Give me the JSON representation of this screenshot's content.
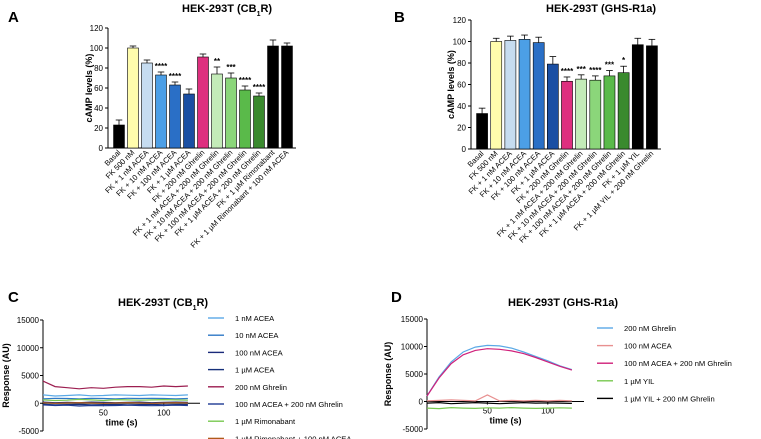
{
  "chart_data": [
    {
      "type": "bar",
      "panel": "A",
      "title": "HEK-293T (CB",
      "title_sub": "1",
      "title_end": "R)",
      "ylabel": "cAMP levels (%)",
      "ylim": [
        0,
        120
      ],
      "yticks": [
        "0",
        "20",
        "40",
        "60",
        "80",
        "100",
        "120"
      ],
      "categories": [
        "Basal",
        "FK 500 nM",
        "FK + 1 nM ACEA",
        "FK + 10 nM ACEA",
        "FK + 100 nM ACEA",
        "FK + 1 µM ACEA",
        "FK + 200 nM Ghrelin",
        "FK + 1 nM ACEA + 200 nM Ghrelin",
        "FK + 10 nM ACEA + 200 nM Ghrelin",
        "FK + 100 nM ACEA + 200 nM Ghrelin",
        "FK + 1 µM ACEA + 200 nM Ghrelin",
        "FK + 1 µM Rimonabant",
        "FK + 1 µM Rimonabant + 100 nM ACEA"
      ],
      "values": [
        23,
        100,
        85,
        73,
        63,
        54,
        91,
        74,
        70,
        58,
        52,
        102,
        102
      ],
      "errors": [
        5,
        2,
        3,
        3,
        3,
        5,
        3,
        7,
        5,
        4,
        3,
        6,
        3
      ],
      "colors": [
        "#000000",
        "#fffcad",
        "#c6dcf0",
        "#4c9fe6",
        "#2a6fc6",
        "#1a4fa3",
        "#de2f7f",
        "#c3ebb8",
        "#8bd67a",
        "#5aba4a",
        "#3a8a2e",
        "#000000",
        "#000000"
      ],
      "significance": [
        "",
        "",
        "",
        "****",
        "****",
        "",
        "",
        "**",
        "***",
        "****",
        "****",
        "",
        ""
      ]
    },
    {
      "type": "bar",
      "panel": "B",
      "title": "HEK-293T (GHS-R1a)",
      "ylabel": "cAMP levels (%)",
      "ylim": [
        0,
        120
      ],
      "yticks": [
        "0",
        "20",
        "40",
        "60",
        "80",
        "100",
        "120"
      ],
      "categories": [
        "Basal",
        "FK 500 nM",
        "FK + 1 nM ACEA",
        "FK + 10 nM ACEA",
        "FK + 100 nM ACEA",
        "FK + 1 µM ACEA",
        "FK + 200 nM Ghrelin",
        "FK + 1 nM ACEA + 200 nM Ghrelin",
        "FK + 10 nM ACEA + 200 nM Ghrelin",
        "FK + 100 nM ACEA + 200 nM Ghrelin",
        "FK + 1 µM ACEA + 200 nM Ghrelin",
        "FK + 1 µM YIL",
        "FK + 1 µM YIL + 200 nM Ghrelin"
      ],
      "values": [
        33,
        100,
        101,
        102,
        99,
        79,
        63,
        65,
        64,
        68,
        71,
        97,
        96
      ],
      "errors": [
        5,
        3,
        4,
        4,
        5,
        7,
        4,
        4,
        4,
        5,
        6,
        6,
        6
      ],
      "colors": [
        "#000000",
        "#fffcad",
        "#c6dcf0",
        "#4c9fe6",
        "#2a6fc6",
        "#1a4fa3",
        "#de2f7f",
        "#c3ebb8",
        "#8bd67a",
        "#5aba4a",
        "#3a8a2e",
        "#000000",
        "#000000"
      ],
      "significance": [
        "",
        "",
        "",
        "",
        "",
        "",
        "****",
        "***",
        "****",
        "***",
        "*",
        "",
        ""
      ]
    },
    {
      "type": "line",
      "panel": "C",
      "title": "HEK-293T (CB",
      "title_sub": "1",
      "title_end": "R)",
      "xlabel": "time (s)",
      "ylabel": "Response (AU)",
      "xlim": [
        0,
        130
      ],
      "ylim": [
        -5000,
        15000
      ],
      "xticks": [
        "50",
        "100"
      ],
      "yticks": [
        "-5000",
        "0",
        "5000",
        "10000",
        "15000"
      ],
      "x": [
        0,
        10,
        20,
        30,
        40,
        50,
        60,
        70,
        80,
        90,
        100,
        110,
        120
      ],
      "series": [
        {
          "name": "1 nM ACEA",
          "color": "#5aa9e6",
          "values": [
            1500,
            1300,
            1400,
            1500,
            1350,
            1400,
            1500,
            1450,
            1400,
            1500,
            1450,
            1400,
            1500
          ]
        },
        {
          "name": "10 nM ACEA",
          "color": "#2f78c6",
          "values": [
            800,
            900,
            850,
            800,
            900,
            850,
            800,
            900,
            850,
            900,
            850,
            800,
            850
          ]
        },
        {
          "name": "100 nM ACEA",
          "color": "#1a2a7a",
          "values": [
            200,
            100,
            150,
            100,
            200,
            150,
            100,
            150,
            200,
            100,
            150,
            200,
            150
          ]
        },
        {
          "name": "1 µM ACEA",
          "color": "#16307a",
          "values": [
            -200,
            -300,
            -250,
            -200,
            -300,
            -250,
            -200,
            -300,
            -250,
            -200,
            -300,
            -250,
            -200
          ]
        },
        {
          "name": "200 nM Ghrelin",
          "color": "#9c1e50",
          "values": [
            4000,
            3000,
            2800,
            2600,
            2800,
            2700,
            2900,
            3000,
            3000,
            2900,
            3100,
            3000,
            3100
          ]
        },
        {
          "name": "100 nM ACEA + 200 nM Ghrelin",
          "color": "#1f3a93",
          "values": [
            -300,
            -400,
            -350,
            -500,
            -400,
            -450,
            -400,
            -350,
            -400,
            -450,
            -400,
            -350,
            -400
          ]
        },
        {
          "name": "1 µM Rimonabant",
          "color": "#78c850",
          "values": [
            600,
            500,
            550,
            700,
            600,
            500,
            650,
            600,
            550,
            600,
            650,
            600,
            550
          ]
        },
        {
          "name": "1 µM Rimonabant + 100 nM ACEA",
          "color": "#b05a1a",
          "values": [
            100,
            0,
            50,
            100,
            50,
            0,
            50,
            100,
            50,
            0,
            50,
            100,
            50
          ]
        }
      ]
    },
    {
      "type": "line",
      "panel": "D",
      "title": "HEK-293T (GHS-R1a)",
      "xlabel": "time (s)",
      "ylabel": "Response (AU)",
      "xlim": [
        0,
        130
      ],
      "ylim": [
        -5000,
        15000
      ],
      "xticks": [
        "50",
        "100"
      ],
      "yticks": [
        "-5000",
        "0",
        "5000",
        "10000",
        "15000"
      ],
      "x": [
        0,
        10,
        20,
        30,
        40,
        50,
        60,
        70,
        80,
        90,
        100,
        110,
        120
      ],
      "series": [
        {
          "name": "200 nM Ghrelin",
          "color": "#5aa9e6",
          "values": [
            1000,
            4500,
            7200,
            9000,
            9900,
            10200,
            10100,
            9700,
            9000,
            8200,
            7400,
            6500,
            5800
          ]
        },
        {
          "name": "100 nM ACEA",
          "color": "#e89090",
          "values": [
            100,
            200,
            300,
            200,
            100,
            1200,
            100,
            200,
            100,
            200,
            100,
            200,
            100
          ]
        },
        {
          "name": "100 nM ACEA + 200 nM Ghrelin",
          "color": "#d0207a",
          "values": [
            1000,
            4300,
            6900,
            8500,
            9300,
            9600,
            9500,
            9200,
            8700,
            8000,
            7200,
            6400,
            5700
          ]
        },
        {
          "name": "1 µM YIL",
          "color": "#78c850",
          "values": [
            -1200,
            -1300,
            -1100,
            -1200,
            -1250,
            -1150,
            -1200,
            -1100,
            -1200,
            -1250,
            -1200,
            -1150,
            -1200
          ]
        },
        {
          "name": "1 µM YIL + 200 nM Ghrelin",
          "color": "#000000",
          "values": [
            -300,
            -200,
            -400,
            -300,
            -200,
            -300,
            -400,
            -300,
            -200,
            -300,
            -250,
            -300,
            -350
          ]
        }
      ]
    }
  ]
}
